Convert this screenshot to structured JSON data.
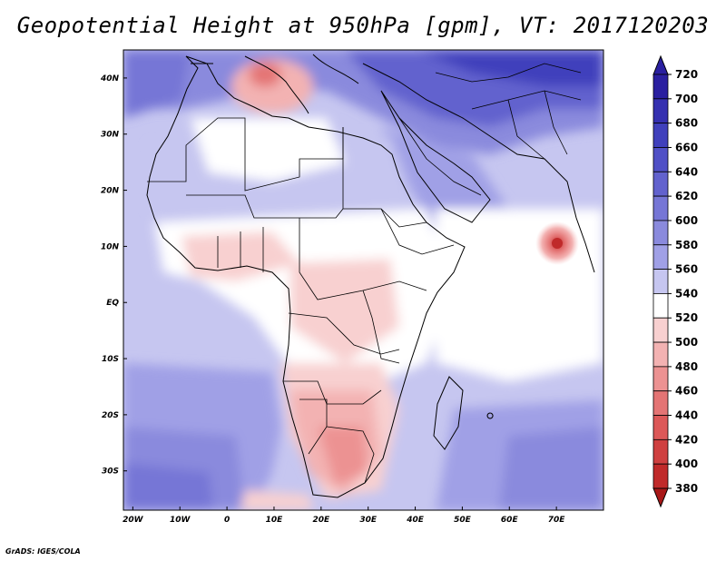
{
  "title": "Geopotential Height at 950hPa [gpm], VT: 2017120203",
  "credit": "GrADS: IGES/COLA",
  "map": {
    "lon_range": [
      -22,
      80
    ],
    "lat_range": [
      -37,
      45
    ],
    "lon_labels": [
      "20W",
      "10W",
      "0",
      "10E",
      "20E",
      "30E",
      "40E",
      "50E",
      "60E",
      "70E"
    ],
    "lon_values": [
      -20,
      -10,
      0,
      10,
      20,
      30,
      40,
      50,
      60,
      70
    ],
    "lat_labels": [
      "40N",
      "30N",
      "20N",
      "10N",
      "EQ",
      "10S",
      "20S",
      "30S"
    ],
    "lat_values": [
      40,
      30,
      20,
      10,
      0,
      -10,
      -20,
      -30
    ],
    "features": {
      "low_center_lon": 70,
      "low_center_lat": 10,
      "high_north_lon": 10,
      "high_north_lat": 42,
      "south_africa_lon": 25,
      "south_africa_lat": -28
    }
  },
  "colorbar": {
    "labels": [
      "720",
      "700",
      "680",
      "660",
      "640",
      "620",
      "600",
      "580",
      "560",
      "540",
      "520",
      "500",
      "480",
      "460",
      "440",
      "420",
      "400",
      "380"
    ],
    "colors": [
      "#2a1fa0",
      "#3530b0",
      "#4040bc",
      "#5050c6",
      "#6262ce",
      "#7676d6",
      "#8a8add",
      "#a0a0e6",
      "#c6c6f0",
      "#ffffff",
      "#f8d0d0",
      "#f3b2b2",
      "#ec9292",
      "#e47474",
      "#dc5858",
      "#cf4040",
      "#c02a2a",
      "#a81818"
    ]
  }
}
